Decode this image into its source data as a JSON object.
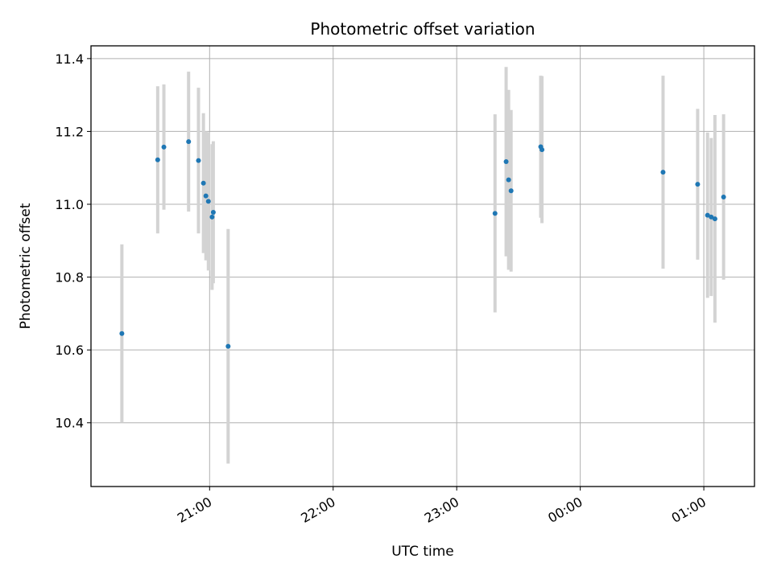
{
  "chart_data": {
    "type": "scatter",
    "title": "Photometric offset variation",
    "xlabel": "UTC time",
    "ylabel": "Photometric offset",
    "x_unit": "hour",
    "x_ticks": [
      {
        "t": 21.0,
        "label": "21:00"
      },
      {
        "t": 22.0,
        "label": "22:00"
      },
      {
        "t": 23.0,
        "label": "23:00"
      },
      {
        "t": 24.0,
        "label": "00:00"
      },
      {
        "t": 25.0,
        "label": "01:00"
      }
    ],
    "y_ticks": [
      10.4,
      10.6,
      10.8,
      11.0,
      11.2,
      11.4
    ],
    "xlim": [
      20.04,
      25.41
    ],
    "ylim": [
      10.225,
      11.435
    ],
    "grid": true,
    "point_color": "#1f77b4",
    "errorbar_color": "#d3d3d3",
    "points": [
      {
        "t": 20.29,
        "y": 10.645,
        "err": 0.245
      },
      {
        "t": 20.58,
        "y": 11.122,
        "err": 0.202
      },
      {
        "t": 20.63,
        "y": 11.157,
        "err": 0.172
      },
      {
        "t": 20.83,
        "y": 11.172,
        "err": 0.192
      },
      {
        "t": 20.91,
        "y": 11.12,
        "err": 0.2
      },
      {
        "t": 20.95,
        "y": 11.058,
        "err": 0.192
      },
      {
        "t": 20.97,
        "y": 11.023,
        "err": 0.177
      },
      {
        "t": 20.99,
        "y": 11.008,
        "err": 0.19
      },
      {
        "t": 21.02,
        "y": 10.965,
        "err": 0.2
      },
      {
        "t": 21.03,
        "y": 10.978,
        "err": 0.195
      },
      {
        "t": 21.15,
        "y": 10.61,
        "err": 0.322
      },
      {
        "t": 23.31,
        "y": 10.975,
        "err": 0.272
      },
      {
        "t": 23.4,
        "y": 11.117,
        "err": 0.26
      },
      {
        "t": 23.42,
        "y": 11.067,
        "err": 0.247
      },
      {
        "t": 23.44,
        "y": 11.037,
        "err": 0.222
      },
      {
        "t": 23.68,
        "y": 11.158,
        "err": 0.195
      },
      {
        "t": 23.69,
        "y": 11.15,
        "err": 0.202
      },
      {
        "t": 24.67,
        "y": 11.088,
        "err": 0.265
      },
      {
        "t": 24.95,
        "y": 11.055,
        "err": 0.207
      },
      {
        "t": 25.03,
        "y": 10.97,
        "err": 0.227
      },
      {
        "t": 25.06,
        "y": 10.965,
        "err": 0.217
      },
      {
        "t": 25.09,
        "y": 10.96,
        "err": 0.285
      },
      {
        "t": 25.16,
        "y": 11.02,
        "err": 0.227
      }
    ]
  }
}
